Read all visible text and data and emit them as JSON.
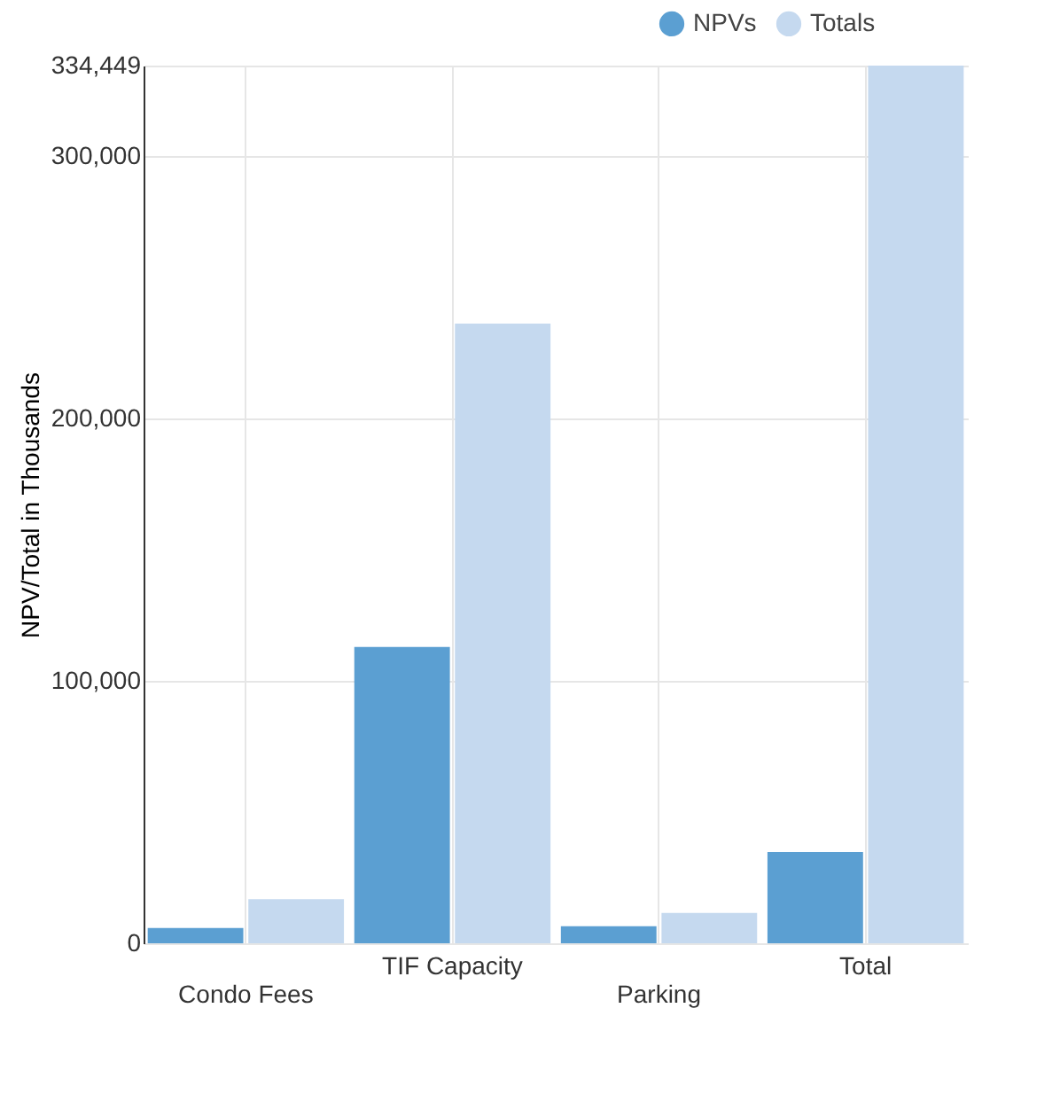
{
  "chart_data": {
    "type": "bar",
    "ylabel": "NPV/Total in Thousands",
    "categories": [
      "Condo Fees",
      "TIF Capacity",
      "Parking",
      "Total"
    ],
    "series": [
      {
        "name": "NPVs",
        "color": "#5b9fd2",
        "values": [
          5800,
          112900,
          6500,
          34800
        ]
      },
      {
        "name": "Totals",
        "color": "#c5d9ef",
        "values": [
          16800,
          236100,
          11600,
          334449
        ]
      }
    ],
    "ylim": [
      0,
      334449
    ],
    "yticks": [
      {
        "value": 0,
        "label": "0"
      },
      {
        "value": 100000,
        "label": "100,000"
      },
      {
        "value": 200000,
        "label": "200,000"
      },
      {
        "value": 300000,
        "label": "300,000"
      },
      {
        "value": 334449,
        "label": "334,449"
      }
    ],
    "grid": true,
    "legend": "top right"
  }
}
